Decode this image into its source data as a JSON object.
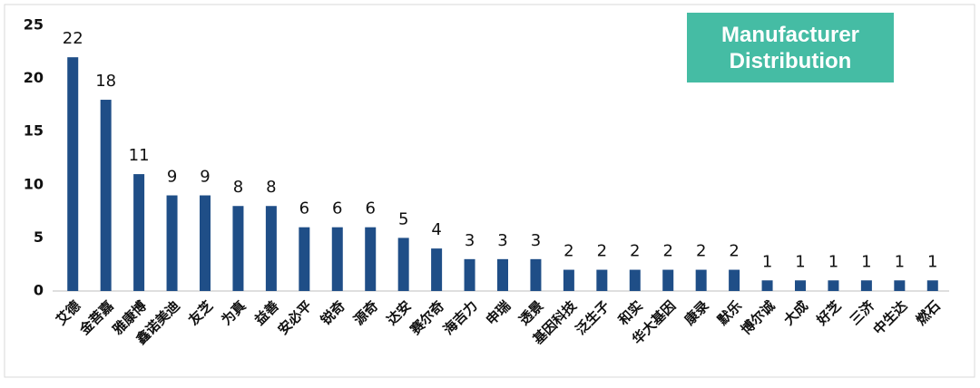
{
  "chart_data": {
    "type": "bar",
    "title": "Manufacturer Distribution",
    "categories": [
      "艾德",
      "金菩嘉",
      "雅康博",
      "鑫诺美迪",
      "友芝",
      "为真",
      "益善",
      "安必平",
      "锐奇",
      "源奇",
      "达安",
      "赛尔奇",
      "海吉力",
      "申瑞",
      "透景",
      "基因科技",
      "泛生子",
      "和实",
      "华大基因",
      "康录",
      "默乐",
      "博尔诚",
      "大成",
      "好芝",
      "三济",
      "中生达",
      "燃石"
    ],
    "values": [
      22,
      18,
      11,
      9,
      9,
      8,
      8,
      6,
      6,
      6,
      5,
      4,
      3,
      3,
      3,
      2,
      2,
      2,
      2,
      2,
      2,
      1,
      1,
      1,
      1,
      1,
      1
    ],
    "color": "#1f4e87",
    "title_color": "#45bca4",
    "ylim": [
      0,
      25
    ],
    "yticks": [
      0,
      5,
      10,
      15,
      20,
      25
    ],
    "grid": false
  }
}
